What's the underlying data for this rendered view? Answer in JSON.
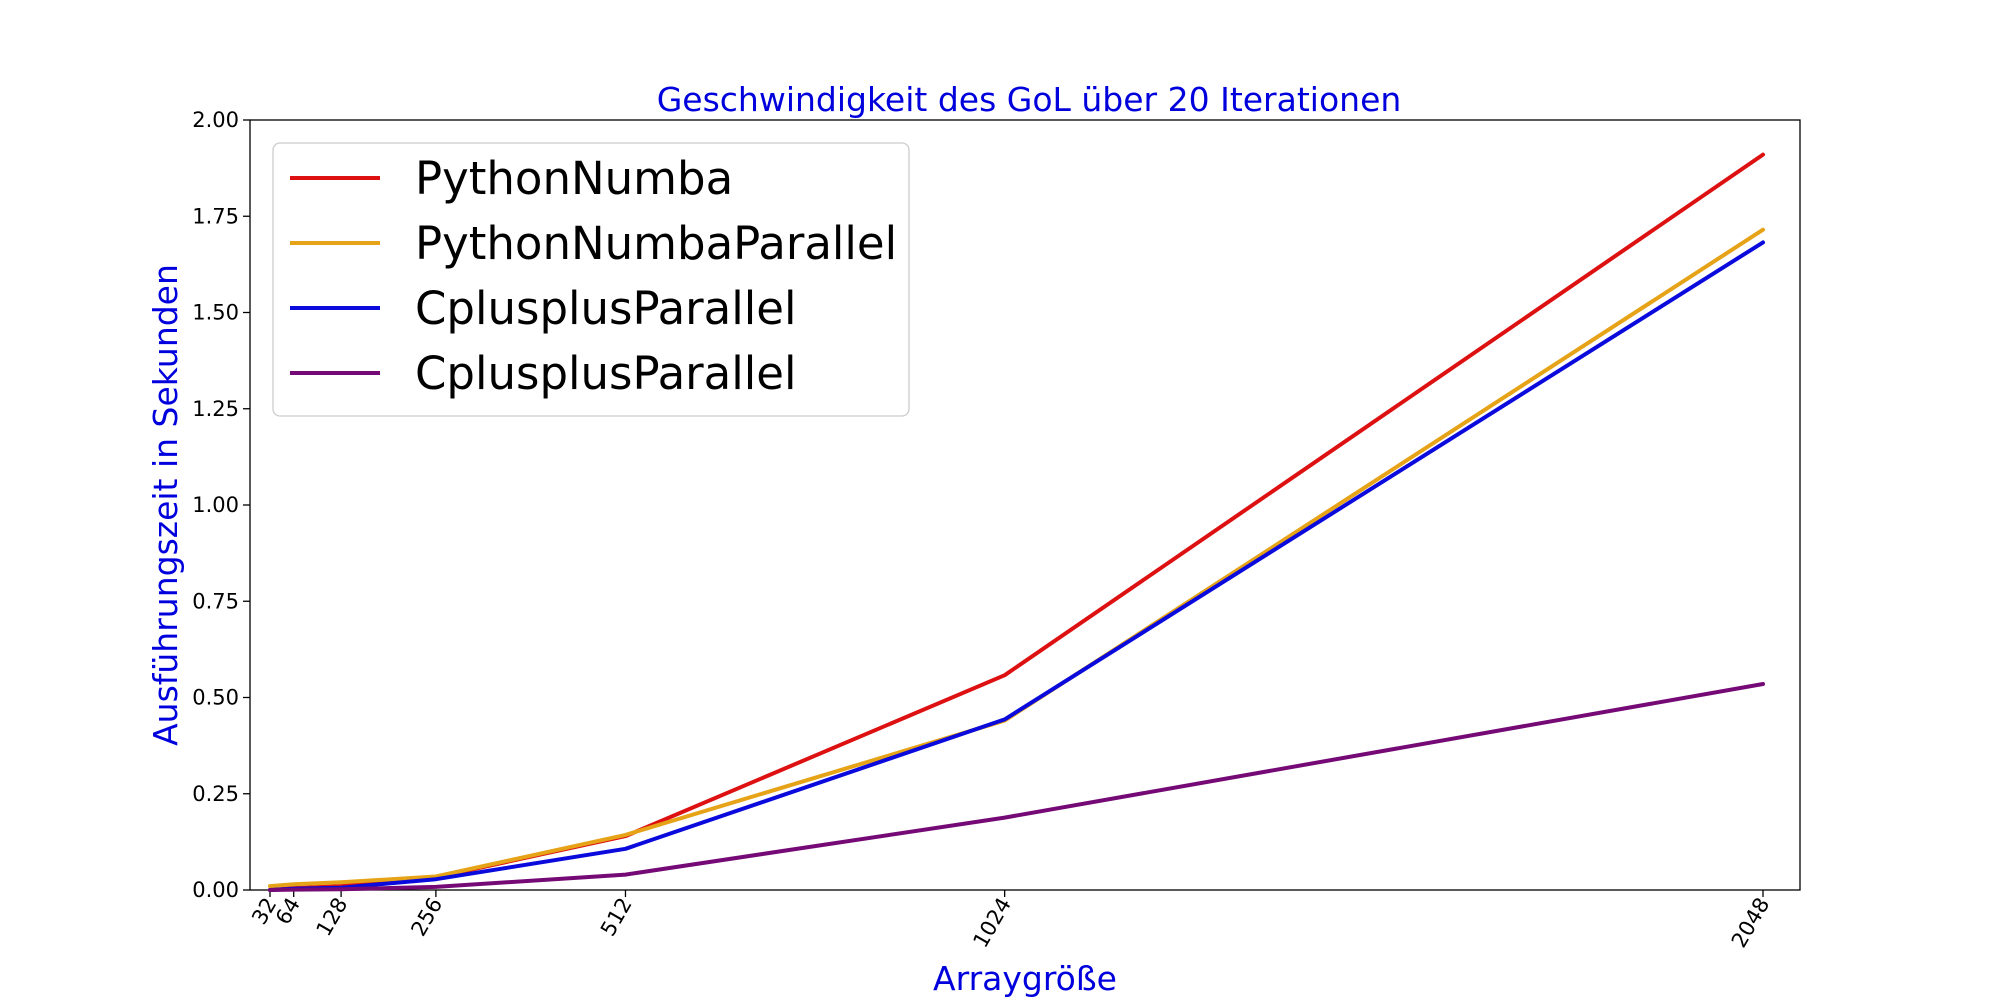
{
  "chart_data": {
    "type": "line",
    "title": "Geschwindigkeit des GoL über 20 Iterationen",
    "xlabel": "Arraygröße",
    "ylabel": "Ausführungszeit in Sekunden",
    "x": [
      32,
      64,
      128,
      256,
      512,
      1024,
      2048
    ],
    "xticks": [
      "32",
      "64",
      "128",
      "256",
      "512",
      "1024",
      "2048"
    ],
    "xlim": [
      32,
      2048
    ],
    "ylim": [
      0,
      2
    ],
    "yticks": [
      "0.00",
      "0.25",
      "0.50",
      "0.75",
      "1.00",
      "1.25",
      "1.50",
      "1.75",
      "2.00"
    ],
    "legend_position": "upper-left",
    "grid": false,
    "series": [
      {
        "name": "PythonNumba",
        "color": "#dd1111",
        "values": [
          0.0,
          0.005,
          0.01,
          0.033,
          0.14,
          0.558,
          1.91
        ]
      },
      {
        "name": "PythonNumbaParallel",
        "color": "#e6a317",
        "values": [
          0.01,
          0.015,
          0.02,
          0.035,
          0.143,
          0.44,
          1.715
        ]
      },
      {
        "name": "CplusplusParallel",
        "color": "#0a0add",
        "values": [
          0.0,
          0.003,
          0.006,
          0.028,
          0.107,
          0.443,
          1.682
        ]
      },
      {
        "name": "CplusplusParallel",
        "color": "#750975",
        "values": [
          0.0,
          0.001,
          0.002,
          0.008,
          0.04,
          0.188,
          0.535
        ]
      }
    ]
  }
}
